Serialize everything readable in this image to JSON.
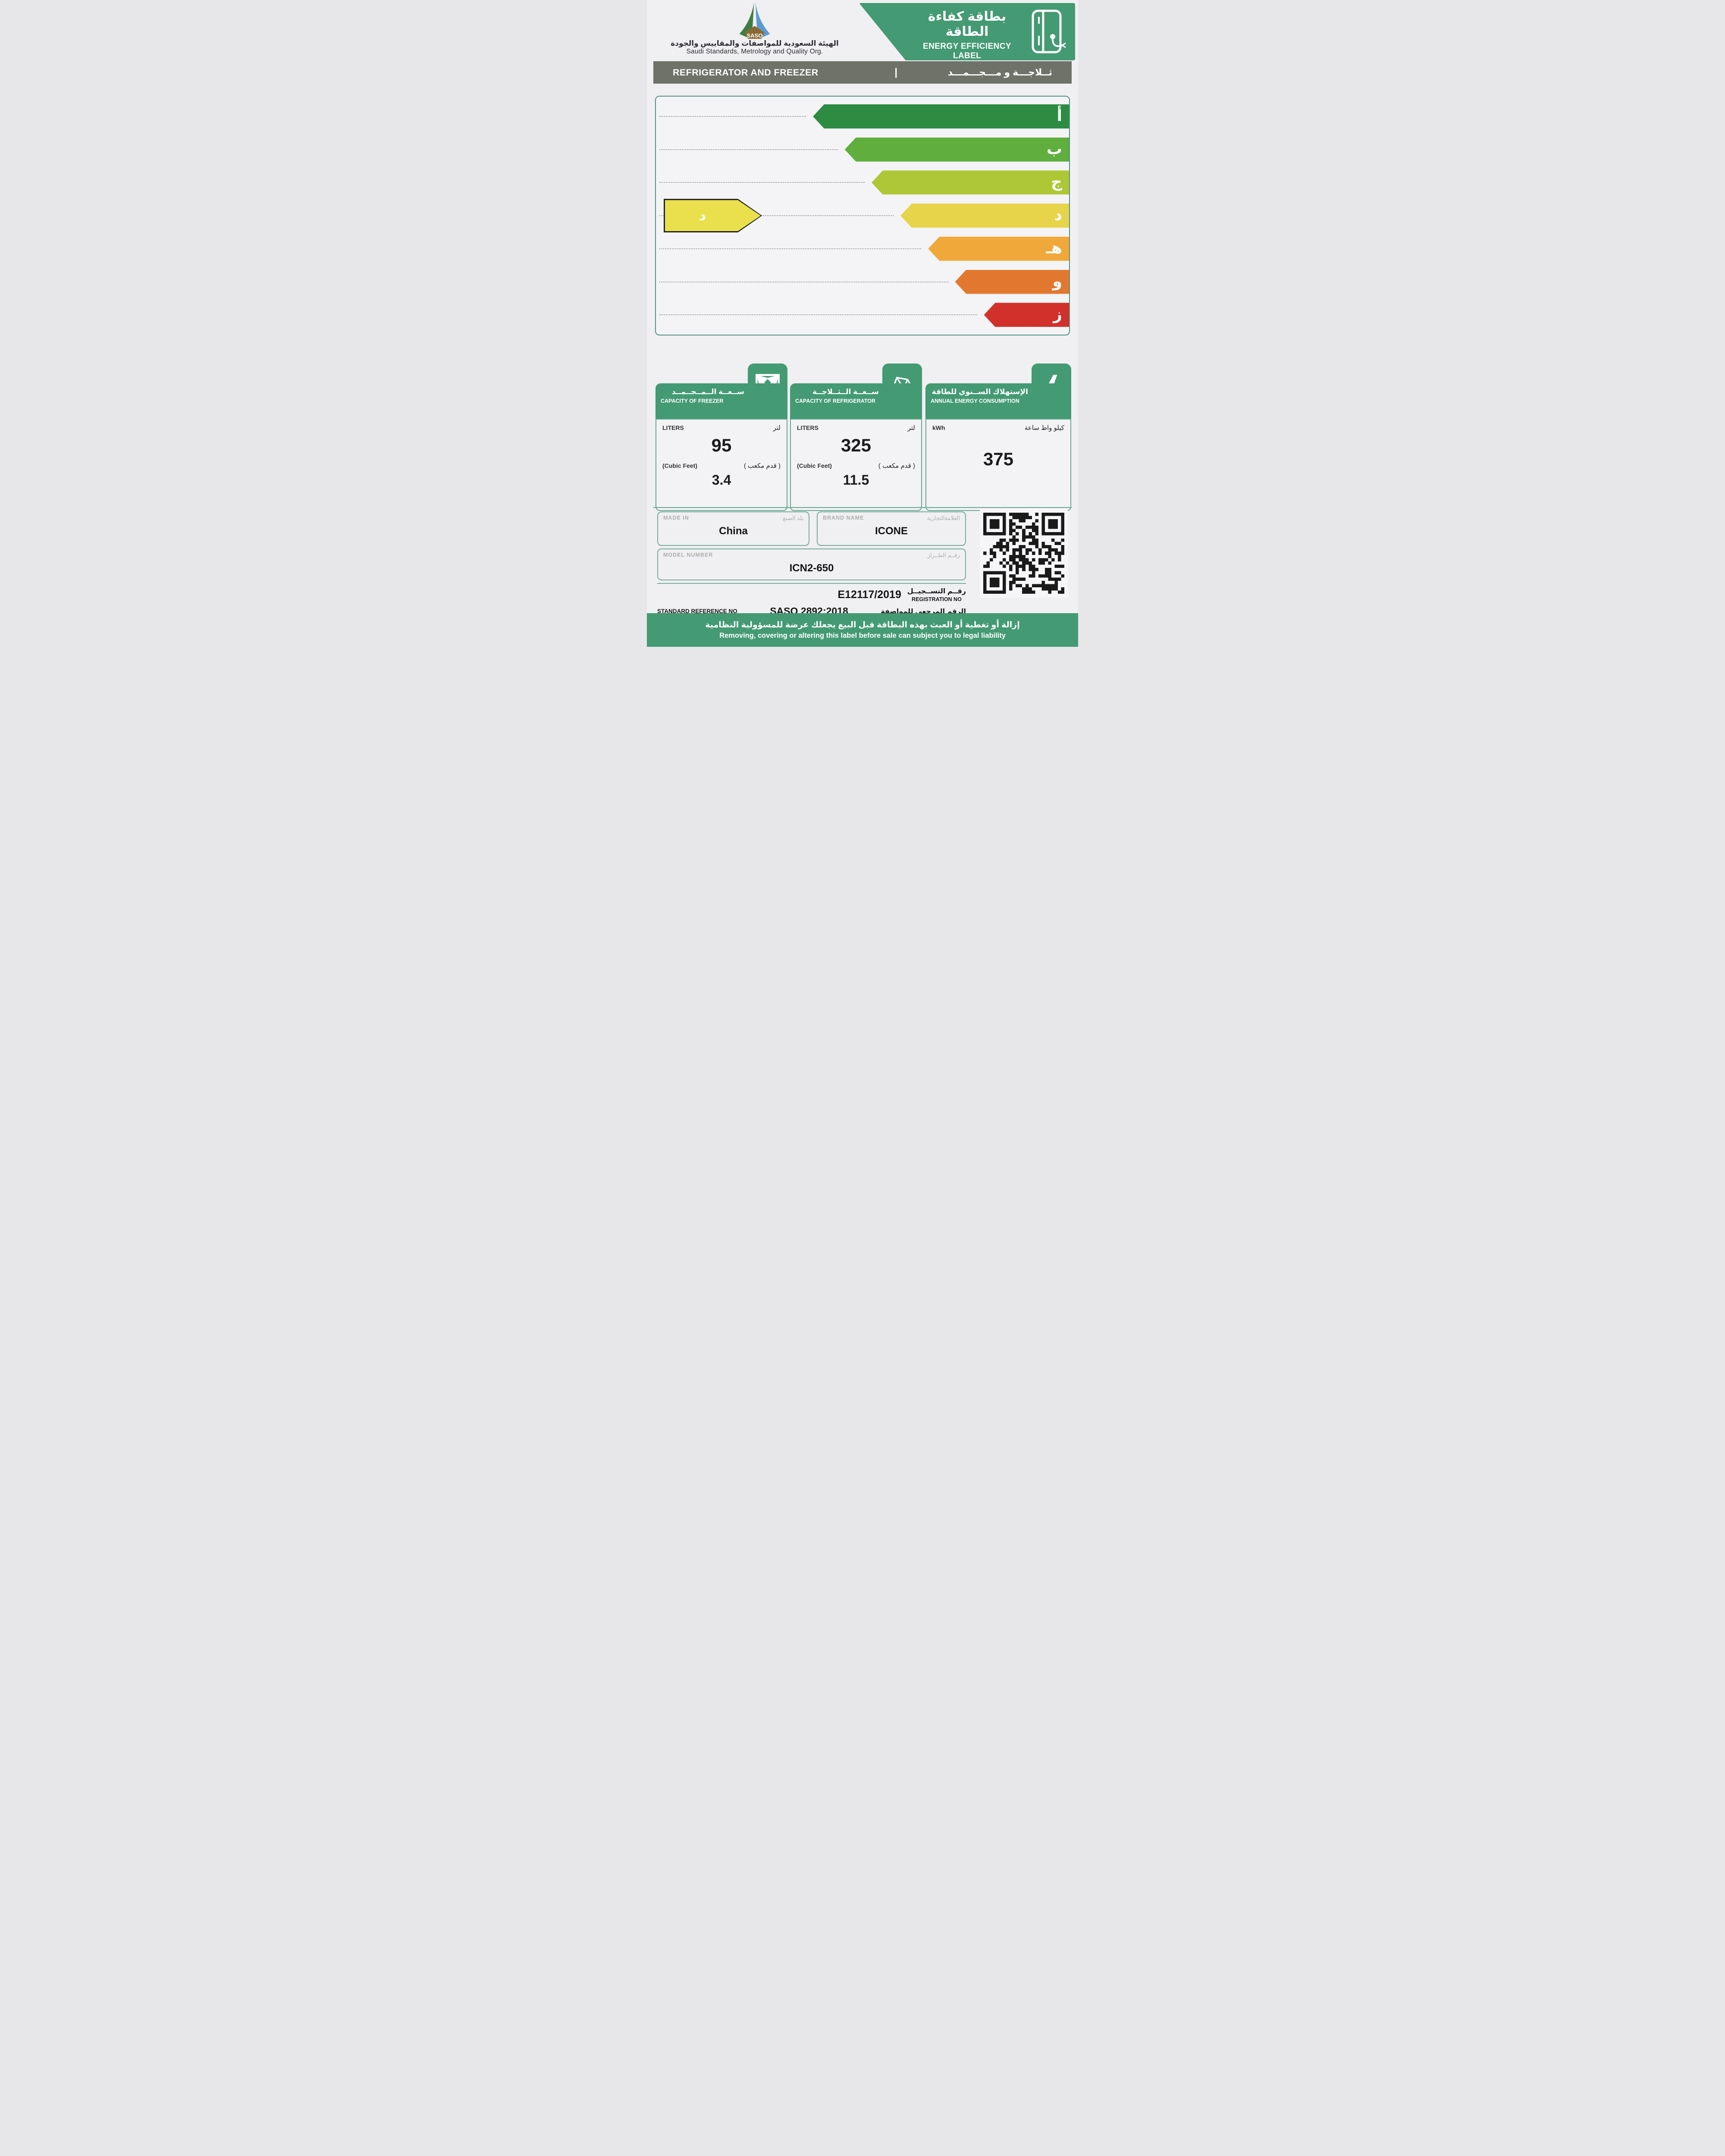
{
  "colors": {
    "brand_green": "#449a73",
    "banner_gray": "#6e7269",
    "chart_border": "#4d9180",
    "pointer_yellow": "#eae04d"
  },
  "header": {
    "logo_text": "SASO",
    "org_name_ar": "الهيئة السعودية للمواصفات والمقاييس والجودة",
    "org_name_en": "Saudi Standards, Metrology and Quality Org.",
    "title_ar": "بطاقة كفاءة الطاقة",
    "title_en": "ENERGY EFFICIENCY LABEL"
  },
  "banner": {
    "title_en": "REFRIGERATOR AND FREEZER",
    "divider": "|",
    "title_ar": "ثــلاجـــة و مـــجـــمـــد"
  },
  "chart_data": {
    "type": "bar",
    "title": "Energy efficiency grade scale (best أ to worst ز)",
    "orientation": "horizontal arrows, anchored right, pointing left",
    "categories": [
      "أ",
      "ب",
      "ج",
      "د",
      "هـ",
      "و",
      "ز"
    ],
    "series": [
      {
        "name": "arrow length (% of scale width)",
        "values": [
          62,
          54.3,
          47.8,
          40.8,
          34.1,
          27.6,
          20.6
        ]
      }
    ],
    "bar_colors": [
      "#2d8c42",
      "#5fae3e",
      "#aec736",
      "#e7d44b",
      "#f1a83a",
      "#e2782f",
      "#d2302a"
    ],
    "legend_position": "none",
    "grid": "dotted leader lines per row",
    "rating": {
      "letter": "د",
      "row_index": 3,
      "color": "#eae04d"
    }
  },
  "info_boxes": [
    {
      "title_ar": "ســعــة الــمــجــمــد",
      "title_en": "CAPACITY OF FREEZER",
      "icon": "expand-arrows-icon",
      "unit_en": "LITERS",
      "unit_ar": "لتر",
      "value": "95",
      "unit2_en": "(Cubic Feet)",
      "unit2_ar": "( قدم مكعب )",
      "value2": "3.4"
    },
    {
      "title_ar": "ســعــة الــثــلاجــة",
      "title_en": "CAPACITY OF REFRIGERATOR",
      "icon": "milk-carton-icon",
      "unit_en": "LITERS",
      "unit_ar": "لتر",
      "value": "325",
      "unit2_en": "(Cubic Feet)",
      "unit2_ar": "( قدم مكعب )",
      "value2": "11.5"
    },
    {
      "title_ar": "الإستهلاك الســنوي للطاقة",
      "title_en": "ANNUAL ENERGY CONSUMPTION",
      "icon": "lightning-icon",
      "unit_en": "kWh",
      "unit_ar": "كيلو واط ساعة",
      "value": "375"
    }
  ],
  "form": {
    "made_in": {
      "label_en": "MADE IN",
      "label_ar": "بلد الصنع",
      "value": "China"
    },
    "brand": {
      "label_en": "BRAND NAME",
      "label_ar": "العلامةالتجارية",
      "value": "ICONE"
    },
    "model": {
      "label_en": "MODEL NUMBER",
      "label_ar": "رقــم الطــراز",
      "value": "ICN2-650"
    },
    "registration": {
      "value": "E12117/2019",
      "label_ar": "رقــم التســجيــل",
      "label_en": "REGISTRATION NO"
    },
    "standard": {
      "label_en": "STANDARD REFERENCE NO",
      "value": "SASO 2892:2018",
      "label_ar": "الرقم المرجعي للمواصفة"
    }
  },
  "qr": {
    "name": "registration-qr-code"
  },
  "footer": {
    "warning_ar": "إزالة أو تغطية أو العبث بهذه البطاقة قبل البيع يجعلك عرضة للمسؤولية النظامية",
    "warning_en": "Removing, covering or altering this label before sale can subject you to legal liability"
  }
}
